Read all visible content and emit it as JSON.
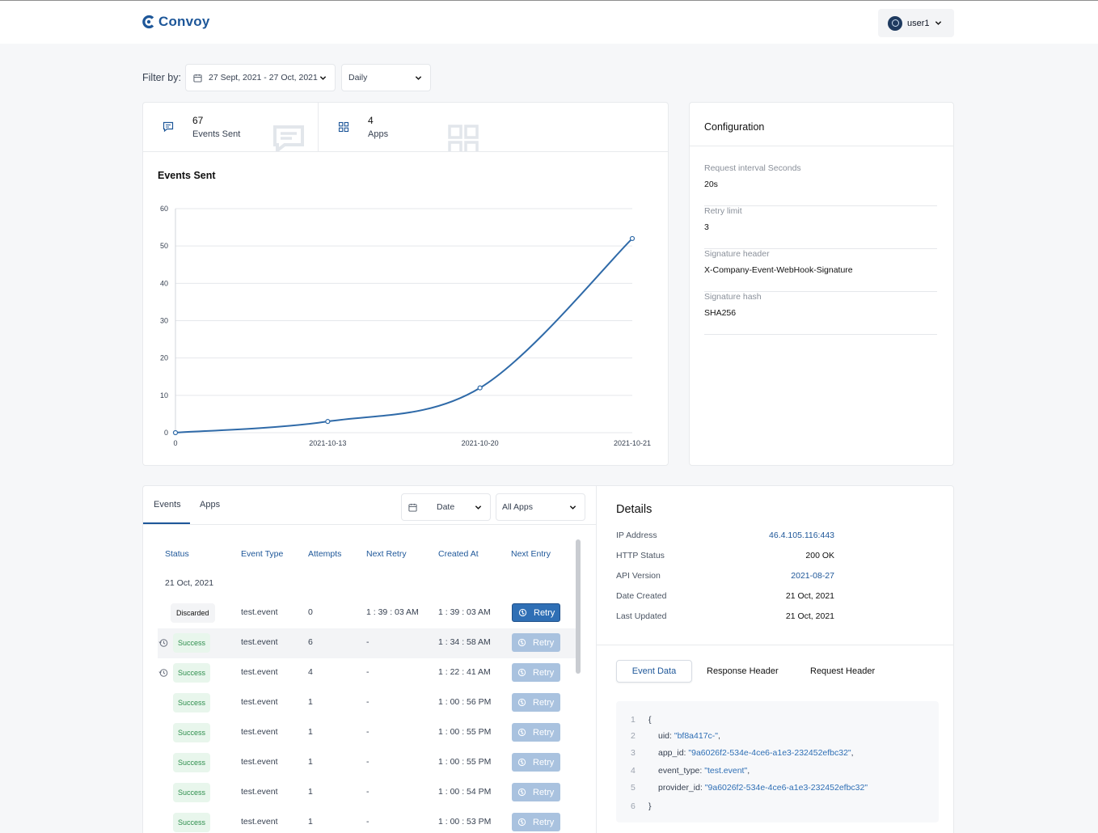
{
  "header": {
    "logo_text": "Convoy",
    "user_name": "user1"
  },
  "filter": {
    "label": "Filter by:",
    "date_range": "27 Sept, 2021 - 27 Oct, 2021",
    "frequency": "Daily"
  },
  "stats": [
    {
      "value": "67",
      "label": "Events Sent"
    },
    {
      "value": "4",
      "label": "Apps"
    }
  ],
  "chart_title": "Events Sent",
  "chart_data": {
    "type": "line",
    "categories": [
      "0",
      "2021-10-13",
      "2021-10-20",
      "2021-10-21"
    ],
    "series": [
      {
        "values": [
          0,
          3,
          12,
          52
        ]
      }
    ],
    "ylim": [
      0,
      60
    ],
    "yticks": [
      "0",
      "10",
      "20",
      "30",
      "40",
      "50",
      "60"
    ],
    "grid": true,
    "color": "#2f6aa8"
  },
  "configuration": {
    "title": "Configuration",
    "items": [
      {
        "label": "Request interval Seconds",
        "value": "20s"
      },
      {
        "label": "Retry limit",
        "value": "3"
      },
      {
        "label": "Signature header",
        "value": "X-Company-Event-WebHook-Signature"
      },
      {
        "label": "Signature hash",
        "value": "SHA256"
      }
    ]
  },
  "events_panel": {
    "tabs": [
      "Events",
      "Apps"
    ],
    "date_filter": "Date",
    "apps_filter": "All Apps",
    "columns": [
      "Status",
      "Event Type",
      "Attempts",
      "Next Retry",
      "Created At",
      "Next Entry"
    ],
    "group_date": "21 Oct, 2021",
    "retry_label": "Retry",
    "rows": [
      {
        "status": "Discarded",
        "event_type": "test.event",
        "attempts": "0",
        "next_retry": "1 : 39 : 03 AM",
        "created_at": "1 : 39 : 03 AM"
      },
      {
        "status": "Success",
        "event_type": "test.event",
        "attempts": "6",
        "next_retry": "-",
        "created_at": "1 : 34 : 58 AM"
      },
      {
        "status": "Success",
        "event_type": "test.event",
        "attempts": "4",
        "next_retry": "-",
        "created_at": "1 : 22 : 41 AM"
      },
      {
        "status": "Success",
        "event_type": "test.event",
        "attempts": "1",
        "next_retry": "-",
        "created_at": "1 : 00 : 56 PM"
      },
      {
        "status": "Success",
        "event_type": "test.event",
        "attempts": "1",
        "next_retry": "-",
        "created_at": "1 : 00 : 55 PM"
      },
      {
        "status": "Success",
        "event_type": "test.event",
        "attempts": "1",
        "next_retry": "-",
        "created_at": "1 : 00 : 55 PM"
      },
      {
        "status": "Success",
        "event_type": "test.event",
        "attempts": "1",
        "next_retry": "-",
        "created_at": "1 : 00 : 54 PM"
      },
      {
        "status": "Success",
        "event_type": "test.event",
        "attempts": "1",
        "next_retry": "-",
        "created_at": "1 : 00 : 53 PM"
      }
    ]
  },
  "details": {
    "title": "Details",
    "fields": [
      {
        "label": "IP Address",
        "value": "46.4.105.116:443"
      },
      {
        "label": "HTTP Status",
        "value": "200 OK"
      },
      {
        "label": "API Version",
        "value": "2021-08-27"
      },
      {
        "label": "Date Created",
        "value": "21 Oct, 2021"
      },
      {
        "label": "Last Updated",
        "value": "21 Oct, 2021"
      }
    ],
    "tabs": [
      "Event Data",
      "Response Header",
      "Request Header"
    ],
    "code": {
      "line_numbers": [
        "1",
        "2",
        "3",
        "4",
        "5",
        "6"
      ],
      "open_brace": "{",
      "close_brace": "}",
      "keys": [
        "uid: ",
        "app_id: ",
        "event_type: ",
        "provider_id: "
      ],
      "values": [
        "\"bf8a417c-\"",
        "\"9a6026f2-534e-4ce6-a1e3-232452efbc32\"",
        "\"test.event\"",
        "\"9a6026f2-534e-4ce6-a1e3-232452efbc32\""
      ],
      "suffixes": [
        ",",
        ",",
        ",",
        ""
      ]
    }
  }
}
